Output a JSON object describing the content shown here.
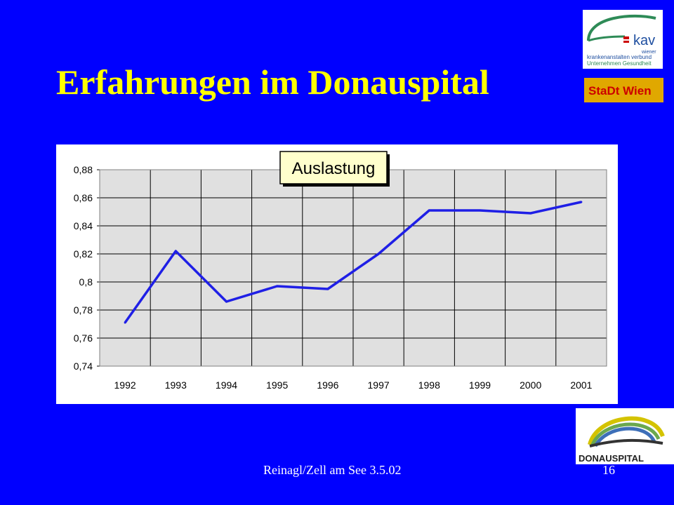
{
  "slide": {
    "title": "Erfahrungen im Donauspital",
    "footer_text": "Reinagl/Zell am See 3.5.02",
    "page_number": "16"
  },
  "logos": {
    "kav_mark": "kav",
    "kav_line1": "wiener",
    "kav_line2": "krankenanstalten verbund",
    "kav_line3": "Unternehmen Gesundheit",
    "stadt_wien": "StaDt Wien",
    "donauspital": "DONAUSPITAL"
  },
  "colors": {
    "background": "#0000ff",
    "title": "#ffff00",
    "plot_area": "#e0e0e0",
    "line": "#1f1fe6"
  },
  "chart_data": {
    "type": "line",
    "title": "Auslastung",
    "categories": [
      "1992",
      "1993",
      "1994",
      "1995",
      "1996",
      "1997",
      "1998",
      "1999",
      "2000",
      "2001"
    ],
    "values": [
      0.771,
      0.822,
      0.786,
      0.797,
      0.795,
      0.82,
      0.851,
      0.851,
      0.849,
      0.857
    ],
    "ylim": [
      0.74,
      0.88
    ],
    "yticks": [
      "0,74",
      "0,76",
      "0,78",
      "0,8",
      "0,82",
      "0,84",
      "0,86",
      "0,88"
    ],
    "grid": true,
    "legend": "none"
  }
}
